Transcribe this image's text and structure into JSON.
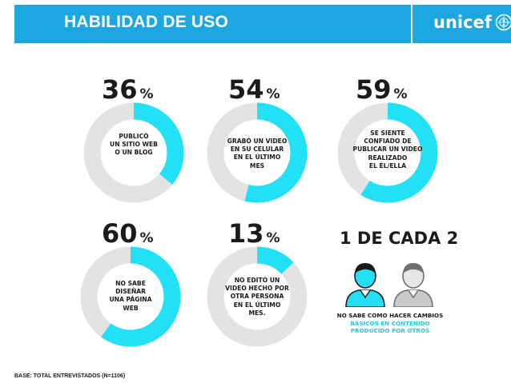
{
  "header": {
    "title": "HABILIDAD DE USO",
    "logo_text": "unicef",
    "logo_icon": "unicef-emblem-icon",
    "bg_color": "#1ca7e0"
  },
  "colors": {
    "accent": "#22e0f6",
    "track": "#e3e3e3",
    "text": "#1b1b1b",
    "caption_accent": "#27c6e8"
  },
  "stats": [
    {
      "value": "36",
      "unit": "%",
      "fraction": 0.36,
      "label": "PUBLICÓ\nUN SITIO WEB\nO UN BLOG"
    },
    {
      "value": "54",
      "unit": "%",
      "fraction": 0.54,
      "label": "GRABÓ UN VIDEO\nEN SU CELULAR\nEN EL ÚLTIMO\nMES"
    },
    {
      "value": "59",
      "unit": "%",
      "fraction": 0.59,
      "label": "SE SIENTE\nCONFIADO DE\nPUBLICAR UN VIDEO\nREALIZADO\nEL ÉL/ELLA"
    },
    {
      "value": "60",
      "unit": "%",
      "fraction": 0.6,
      "label": "NO SABE\nDISEÑAR\nUNA PÁGINA\nWEB"
    },
    {
      "value": "13",
      "unit": "%",
      "fraction": 0.13,
      "label": "NO EDITÓ UN\nVIDEO HECHO POR\nOTRA PERSONA\nEN EL ÚLTIMO\nMES."
    }
  ],
  "ratio": {
    "title": "1 DE CADA 2",
    "caption_line1": "NO SABE COMO HACER CAMBIOS",
    "caption_line2": "BÁSICOS EN CONTENIDO",
    "caption_line3": "PRODUCIDO POR OTROS",
    "icons": [
      "person-icon-highlighted",
      "person-icon-gray"
    ]
  },
  "footer": {
    "base_note": "BASE: TOTAL ENTREVISTADOS (N=1106)"
  }
}
